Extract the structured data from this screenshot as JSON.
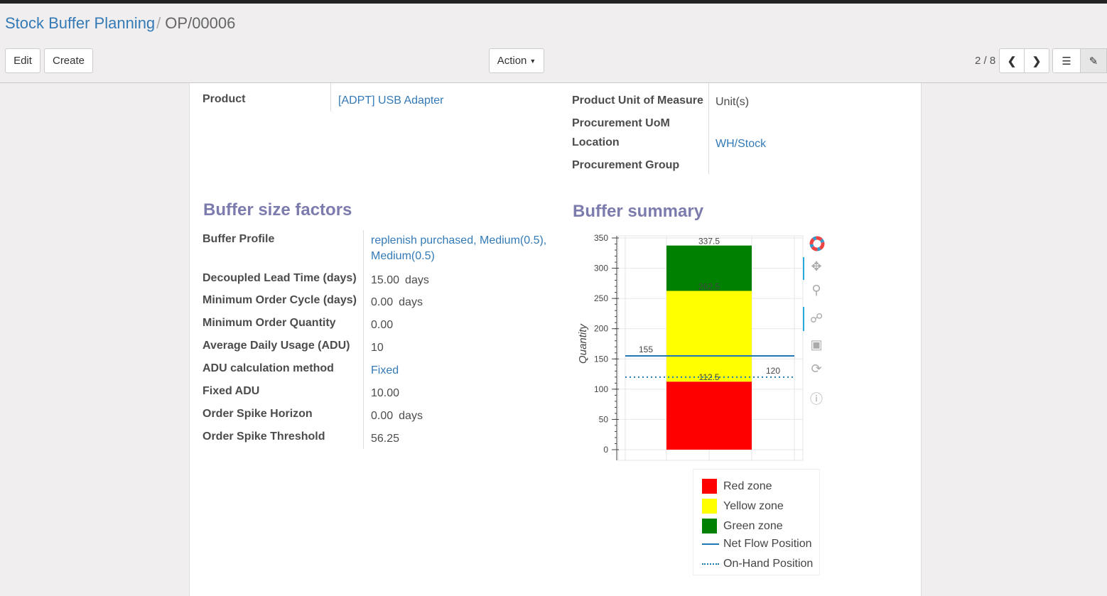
{
  "breadcrumb": {
    "parent": "Stock Buffer Planning",
    "current": "OP/00006"
  },
  "buttons": {
    "edit": "Edit",
    "create": "Create",
    "action": "Action"
  },
  "pager": {
    "value": "2 / 8"
  },
  "fields_top_left": [
    {
      "label": "Product",
      "value": "[ADPT] USB Adapter",
      "link": true
    }
  ],
  "fields_top_right": [
    {
      "label": "Product Unit of Measure",
      "value": "Unit(s)",
      "link": false
    },
    {
      "label": "Procurement UoM",
      "value": "",
      "link": false
    },
    {
      "label": "Location",
      "value": "WH/Stock",
      "link": true
    },
    {
      "label": "Procurement Group",
      "value": "",
      "link": false
    }
  ],
  "buffer_size_factors": {
    "title": "Buffer size factors",
    "fields": [
      {
        "label": "Buffer Profile",
        "value": "replenish purchased, Medium(0.5), Medium(0.5)",
        "link": true
      },
      {
        "label": "Decoupled Lead Time (days)",
        "value": "15.00",
        "unit": "days"
      },
      {
        "label": "Minimum Order Cycle (days)",
        "value": "0.00",
        "unit": "days"
      },
      {
        "label": "Minimum Order Quantity",
        "value": "0.00"
      },
      {
        "label": "Average Daily Usage (ADU)",
        "value": "10"
      },
      {
        "label": "ADU calculation method",
        "value": "Fixed",
        "link": true
      },
      {
        "label": "Fixed ADU",
        "value": "10.00"
      },
      {
        "label": "Order Spike Horizon",
        "value": "0.00",
        "unit": "days"
      },
      {
        "label": "Order Spike Threshold",
        "value": "56.25"
      }
    ]
  },
  "buffer_summary": {
    "title": "Buffer summary"
  },
  "chart_data": {
    "type": "bar",
    "stacked": true,
    "ylabel": "Quantity",
    "ylim": [
      0,
      350
    ],
    "yticks": [
      "0",
      "50",
      "100",
      "150",
      "200",
      "250",
      "300",
      "350"
    ],
    "series": [
      {
        "name": "Red zone",
        "bottom": 0,
        "top": 112.5,
        "color": "#ff0000",
        "label": "112.5"
      },
      {
        "name": "Yellow zone",
        "bottom": 112.5,
        "top": 262.5,
        "color": "#ffff00",
        "label": "262.5"
      },
      {
        "name": "Green zone",
        "bottom": 262.5,
        "top": 337.5,
        "color": "#008000",
        "label": "337.5"
      }
    ],
    "lines": [
      {
        "name": "Net Flow Position",
        "value": 155,
        "style": "solid",
        "color": "#1f77b4",
        "label": "155"
      },
      {
        "name": "On-Hand Position",
        "value": 120,
        "style": "dotted",
        "color": "#1f77b4",
        "label": "120"
      }
    ],
    "grid": true,
    "legend": "bottom"
  }
}
